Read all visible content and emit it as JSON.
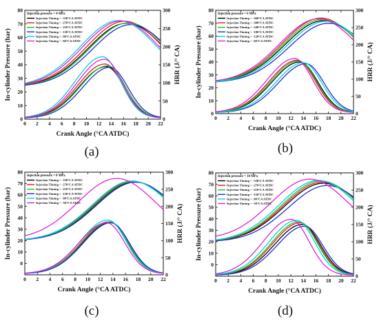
{
  "chart_data": [
    {
      "type": "line",
      "caption": "(a)",
      "legend_title": "Injection pressure = 4 MPa",
      "legend_position": "top-left",
      "xlabel": "Crank Angle (°CA ATDC)",
      "ylabel": "In-cylinder Pressure (bar)",
      "y2label": "HRR (J/° CA)",
      "xlim": [
        0,
        22
      ],
      "ylim": [
        0,
        80
      ],
      "y2lim": [
        0,
        300
      ],
      "xticks": [
        0,
        2,
        4,
        6,
        8,
        10,
        12,
        14,
        16,
        18,
        20,
        22
      ],
      "yticks": [
        0,
        10,
        20,
        30,
        40,
        50,
        60,
        70,
        80
      ],
      "y2ticks": [
        0,
        50,
        100,
        150,
        200,
        250,
        300
      ],
      "grid": false,
      "series": [
        {
          "name": "Injection Timing = -330°CA ATDC",
          "color": "#000000",
          "pressure": {
            "base": 24,
            "peak": 70.5,
            "at": 16.5
          },
          "hrr": {
            "peak": 145,
            "at": 13.2
          }
        },
        {
          "name": "Injection Timing = -270°CA ATDC",
          "color": "#e8141c",
          "pressure": {
            "base": 24,
            "peak": 72,
            "at": 16.2
          },
          "hrr": {
            "peak": 152,
            "at": 13.0
          }
        },
        {
          "name": "Injection Timing = -210°CA ATDC",
          "color": "#22c31e",
          "pressure": {
            "base": 24,
            "peak": 70.8,
            "at": 16.8
          },
          "hrr": {
            "peak": 147,
            "at": 13.4
          }
        },
        {
          "name": "Injection Timing = -150°CA ATDC",
          "color": "#1a2bd6",
          "pressure": {
            "base": 24,
            "peak": 69.5,
            "at": 17.2
          },
          "hrr": {
            "peak": 143,
            "at": 13.8
          }
        },
        {
          "name": "Injection Timing = -90°CA ATDC",
          "color": "#00d0e0",
          "pressure": {
            "base": 24,
            "peak": 72.5,
            "at": 15.2
          },
          "hrr": {
            "peak": 172,
            "at": 12.6
          }
        },
        {
          "name": "Injection Timing = -60°CA ATDC",
          "color": "#e020d8",
          "pressure": {
            "base": 24,
            "peak": 72.2,
            "at": 15.6
          },
          "hrr": {
            "peak": 165,
            "at": 12.9
          }
        }
      ]
    },
    {
      "type": "line",
      "caption": "(b)",
      "legend_title": "Injection pressure = 6 MPa",
      "legend_position": "top-left",
      "xlabel": "Crank Angle (°CA ATDC)",
      "ylabel": "In-cylinder Pressure (bar)",
      "y2label": "HRR (J/° CA)",
      "xlim": [
        0,
        22
      ],
      "ylim": [
        0,
        80
      ],
      "y2lim": [
        0,
        300
      ],
      "xticks": [
        0,
        2,
        4,
        6,
        8,
        10,
        12,
        14,
        16,
        18,
        20,
        22
      ],
      "yticks": [
        0,
        10,
        20,
        30,
        40,
        50,
        60,
        70,
        80
      ],
      "y2ticks": [
        0,
        50,
        100,
        150,
        200,
        250,
        300
      ],
      "grid": false,
      "series": [
        {
          "name": "Injection Timing = -360°CA ATDC",
          "color": "#000000",
          "pressure": {
            "base": 24,
            "peak": 72,
            "at": 17.2
          },
          "hrr": {
            "peak": 150,
            "at": 13.4
          }
        },
        {
          "name": "Injection Timing = -300°CA ATDC",
          "color": "#e8141c",
          "pressure": {
            "base": 24,
            "peak": 74,
            "at": 16.8
          },
          "hrr": {
            "peak": 155,
            "at": 13.0
          }
        },
        {
          "name": "Injection Timing = -240°CA ATDC",
          "color": "#22c31e",
          "pressure": {
            "base": 24,
            "peak": 73,
            "at": 17.0
          },
          "hrr": {
            "peak": 153,
            "at": 13.2
          }
        },
        {
          "name": "Injection Timing = -180°CA ATDC",
          "color": "#1a2bd6",
          "pressure": {
            "base": 24,
            "peak": 70,
            "at": 18.0
          },
          "hrr": {
            "peak": 145,
            "at": 14.4
          }
        },
        {
          "name": "Injection Timing = -120°CA ATDC",
          "color": "#00d0e0",
          "pressure": {
            "base": 24,
            "peak": 71.5,
            "at": 17.6
          },
          "hrr": {
            "peak": 148,
            "at": 14.0
          }
        },
        {
          "name": "Injection Timing = -60°CA ATDC",
          "color": "#e020d8",
          "pressure": {
            "base": 24,
            "peak": 73.5,
            "at": 16.4
          },
          "hrr": {
            "peak": 160,
            "at": 12.6
          }
        }
      ]
    },
    {
      "type": "line",
      "caption": "(c)",
      "legend_title": "Injection pressure = 8 MPa",
      "legend_position": "top-left",
      "xlabel": "Crank Angle (°CA ATDC)",
      "ylabel": "In-cylinder Pressure (bar)",
      "y2label": "HRR (J/° CA)",
      "xlim": [
        0,
        22
      ],
      "ylim": [
        -10,
        80
      ],
      "y2lim": [
        0,
        300
      ],
      "xticks": [
        0,
        2,
        4,
        6,
        8,
        10,
        12,
        14,
        16,
        18,
        20,
        22
      ],
      "yticks": [
        0,
        10,
        20,
        30,
        40,
        50,
        60,
        70,
        80
      ],
      "y2ticks": [
        0,
        50,
        100,
        150,
        200,
        250,
        300
      ],
      "grid": false,
      "series": [
        {
          "name": "Injection Timing = -330°CA ATDC",
          "color": "#000000",
          "pressure": {
            "base": 20,
            "peak": 71.5,
            "at": 17.4
          },
          "hrr": {
            "peak": 153,
            "at": 13.6
          }
        },
        {
          "name": "Injection Timing = -270°CA ATDC",
          "color": "#e8141c",
          "pressure": {
            "base": 20,
            "peak": 72,
            "at": 17.2
          },
          "hrr": {
            "peak": 155,
            "at": 13.4
          }
        },
        {
          "name": "Injection Timing = -210°CA ATDC",
          "color": "#22c31e",
          "pressure": {
            "base": 20,
            "peak": 71.8,
            "at": 17.3
          },
          "hrr": {
            "peak": 154,
            "at": 13.5
          }
        },
        {
          "name": "Injection Timing = -150°CA ATDC",
          "color": "#1a2bd6",
          "pressure": {
            "base": 20,
            "peak": 71.2,
            "at": 17.6
          },
          "hrr": {
            "peak": 152,
            "at": 13.7
          }
        },
        {
          "name": "Injection Timing = -90°CA ATDC",
          "color": "#00d0e0",
          "pressure": {
            "base": 20,
            "peak": 72.3,
            "at": 17.0
          },
          "hrr": {
            "peak": 160,
            "at": 13.2
          }
        },
        {
          "name": "Injection Timing = -30°CA ATDC",
          "color": "#e020d8",
          "pressure": {
            "base": 21,
            "peak": 74.5,
            "at": 14.6
          },
          "hrr": {
            "peak": 152,
            "at": 13.0
          }
        }
      ]
    },
    {
      "type": "line",
      "caption": "(d)",
      "legend_title": "Injection pressure = 10 MPa",
      "legend_position": "top-left",
      "xlabel": "Crank Angle (°CA ATDC)",
      "ylabel": "In-cylinder Pressure (bar)",
      "y2label": "HRR (J/° CA)",
      "xlim": [
        0,
        22
      ],
      "ylim": [
        -10,
        80
      ],
      "y2lim": [
        0,
        300
      ],
      "xticks": [
        0,
        2,
        4,
        6,
        8,
        10,
        12,
        14,
        16,
        18,
        20,
        22
      ],
      "yticks": [
        0,
        10,
        20,
        30,
        40,
        50,
        60,
        70,
        80
      ],
      "y2ticks": [
        0,
        50,
        100,
        150,
        200,
        250,
        300
      ],
      "grid": false,
      "series": [
        {
          "name": "Injection Timing = -330°CA ATDC",
          "color": "#000000",
          "pressure": {
            "base": 20,
            "peak": 71,
            "at": 17.2
          },
          "hrr": {
            "peak": 150,
            "at": 13.8
          }
        },
        {
          "name": "Injection Timing = -270°CA ATDC",
          "color": "#e8141c",
          "pressure": {
            "base": 20,
            "peak": 72,
            "at": 17.0
          },
          "hrr": {
            "peak": 155,
            "at": 13.5
          }
        },
        {
          "name": "Injection Timing = -210°CA ATDC",
          "color": "#22c31e",
          "pressure": {
            "base": 20,
            "peak": 73,
            "at": 16.8
          },
          "hrr": {
            "peak": 158,
            "at": 13.3
          }
        },
        {
          "name": "Injection Timing = -150°CA ATDC",
          "color": "#1a2bd6",
          "pressure": {
            "base": 20,
            "peak": 69,
            "at": 17.8
          },
          "hrr": {
            "peak": 145,
            "at": 14.2
          }
        },
        {
          "name": "Injection Timing = -90°CA ATDC",
          "color": "#00d0e0",
          "pressure": {
            "base": 20,
            "peak": 73.5,
            "at": 16.4
          },
          "hrr": {
            "peak": 162,
            "at": 12.9
          }
        },
        {
          "name": "Injection Timing = -30°CA ATDC",
          "color": "#e020d8",
          "pressure": {
            "base": 22,
            "peak": 74.5,
            "at": 15.0
          },
          "hrr": {
            "peak": 165,
            "at": 12.0
          }
        }
      ]
    }
  ]
}
